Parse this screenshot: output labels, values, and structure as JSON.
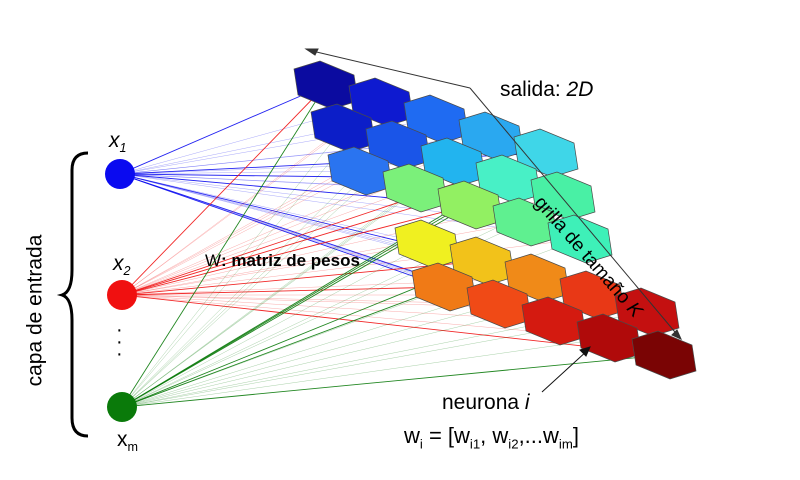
{
  "input_layer": {
    "label": "capa de entrada",
    "nodes": [
      {
        "symbol": "x",
        "index": "1",
        "color": "#0a0af0"
      },
      {
        "symbol": "x",
        "index": "2",
        "color": "#f01010"
      },
      {
        "symbol": "x",
        "index": "m",
        "color": "#0a7a0a"
      }
    ],
    "ellipsis": "·\n·\n·"
  },
  "weights_label": {
    "symbol": "W",
    "text": ": matriz de pesos"
  },
  "output_label": {
    "prefix": "salida: ",
    "value": "2D"
  },
  "grid_label": {
    "prefix": "grilla de tamaño ",
    "value": "K"
  },
  "neuron_label": {
    "prefix": "neurona ",
    "value": "i"
  },
  "weight_vector": {
    "w": "w",
    "sub_i": "i",
    "eq": " = [",
    "w1": "w",
    "sub_1": "i1",
    "sep1": ", ",
    "w2": "w",
    "sub_2": "i2",
    "sep2": ",...",
    "w3": "w",
    "sub_3": "im",
    "end": "]"
  },
  "grid_colors": [
    [
      "#0b0ba0",
      "#0e1ad0",
      "#1f6bf2",
      "#2aa8f0",
      "#3fd6e8"
    ],
    [
      "#0c1ec8",
      "#1a55e8",
      "#22b4ef",
      "#48f0c6",
      "#49f0a5"
    ],
    [
      "#2a74f0",
      "#7bf07a",
      "#92f062",
      "#5ff090",
      "#3ef0b8"
    ],
    [
      "#f0f020",
      "#f2c21a",
      "#f08a18",
      "#e83816",
      "#c41010"
    ],
    [
      "#f07a16",
      "#f04a16",
      "#d41a10",
      "#b00a0a",
      "#7a0404"
    ]
  ]
}
